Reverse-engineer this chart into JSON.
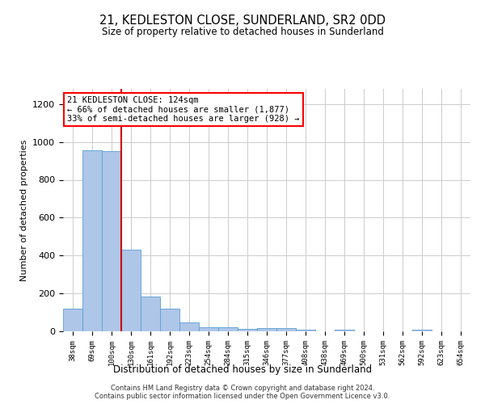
{
  "title": "21, KEDLESTON CLOSE, SUNDERLAND, SR2 0DD",
  "subtitle": "Size of property relative to detached houses in Sunderland",
  "xlabel": "Distribution of detached houses by size in Sunderland",
  "ylabel": "Number of detached properties",
  "categories": [
    "38sqm",
    "69sqm",
    "100sqm",
    "130sqm",
    "161sqm",
    "192sqm",
    "223sqm",
    "254sqm",
    "284sqm",
    "315sqm",
    "346sqm",
    "377sqm",
    "408sqm",
    "438sqm",
    "469sqm",
    "500sqm",
    "531sqm",
    "562sqm",
    "592sqm",
    "623sqm",
    "654sqm"
  ],
  "values": [
    120,
    955,
    950,
    430,
    185,
    120,
    45,
    20,
    20,
    12,
    17,
    17,
    10,
    0,
    10,
    0,
    0,
    0,
    10,
    0,
    0
  ],
  "bar_color": "#aec6e8",
  "bar_edge_color": "#5a9fd4",
  "grid_color": "#cccccc",
  "background_color": "#ffffff",
  "annotation_line1": "21 KEDLESTON CLOSE: 124sqm",
  "annotation_line2": "← 66% of detached houses are smaller (1,877)",
  "annotation_line3": "33% of semi-detached houses are larger (928) →",
  "annotation_box_color": "#ff0000",
  "property_line_color": "#cc0000",
  "property_line_x": 2.5,
  "ylim": [
    0,
    1280
  ],
  "yticks": [
    0,
    200,
    400,
    600,
    800,
    1000,
    1200
  ],
  "footnote": "Contains HM Land Registry data © Crown copyright and database right 2024.\nContains public sector information licensed under the Open Government Licence v3.0."
}
